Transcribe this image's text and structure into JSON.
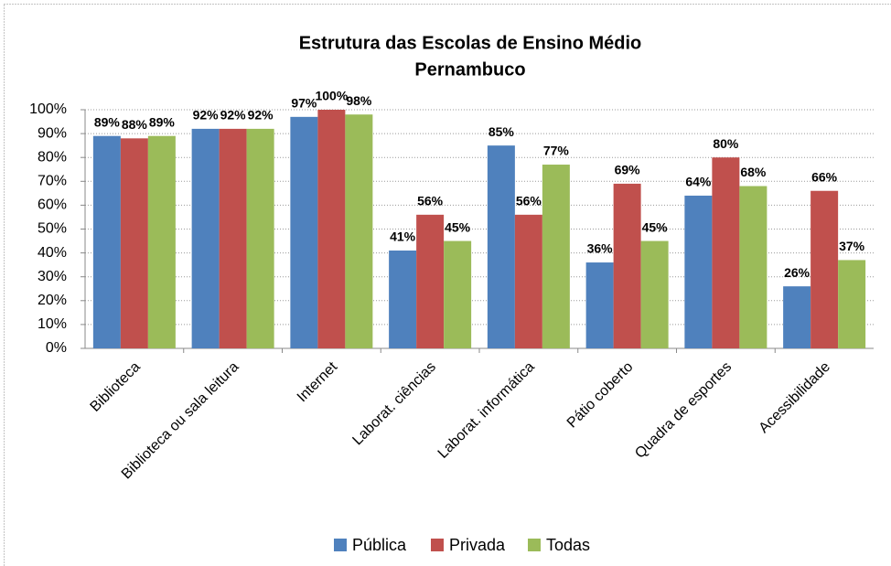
{
  "chart_data": {
    "type": "bar",
    "title": [
      "Estrutura das Escolas de Ensino Médio",
      "Pernambuco"
    ],
    "categories": [
      "Biblioteca",
      "Biblioteca ou sala leitura",
      "Internet",
      "Laborat. ciências",
      "Laborat. informática",
      "Pátio coberto",
      "Quadra de esportes",
      "Acessibilidade"
    ],
    "series": [
      {
        "name": "Pública",
        "color": "#4f81bd",
        "values": [
          89,
          92,
          97,
          41,
          85,
          36,
          64,
          26
        ],
        "value_labels": [
          "89%",
          "92%",
          "97%",
          "41%",
          "85%",
          "36%",
          "64%",
          "26%"
        ]
      },
      {
        "name": "Privada",
        "color": "#c0504d",
        "values": [
          88,
          92,
          100,
          56,
          56,
          69,
          80,
          66
        ],
        "value_labels": [
          "88%",
          "92%",
          "100%",
          "56%",
          "56%",
          "69%",
          "80%",
          "66%"
        ]
      },
      {
        "name": "Todas",
        "color": "#9bbb59",
        "values": [
          89,
          92,
          98,
          45,
          77,
          45,
          68,
          37
        ],
        "value_labels": [
          "89%",
          "92%",
          "98%",
          "45%",
          "77%",
          "45%",
          "68%",
          "37%"
        ]
      }
    ],
    "ylim": [
      0,
      100
    ],
    "yticks": [
      {
        "value": 0,
        "label": "0%"
      },
      {
        "value": 10,
        "label": "10%"
      },
      {
        "value": 20,
        "label": "20%"
      },
      {
        "value": 30,
        "label": "30%"
      },
      {
        "value": 40,
        "label": "40%"
      },
      {
        "value": 50,
        "label": "50%"
      },
      {
        "value": 60,
        "label": "60%"
      },
      {
        "value": 70,
        "label": "70%"
      },
      {
        "value": 80,
        "label": "80%"
      },
      {
        "value": 90,
        "label": "90%"
      },
      {
        "value": 100,
        "label": "100%"
      }
    ],
    "grid": true,
    "legend": "bottom"
  }
}
